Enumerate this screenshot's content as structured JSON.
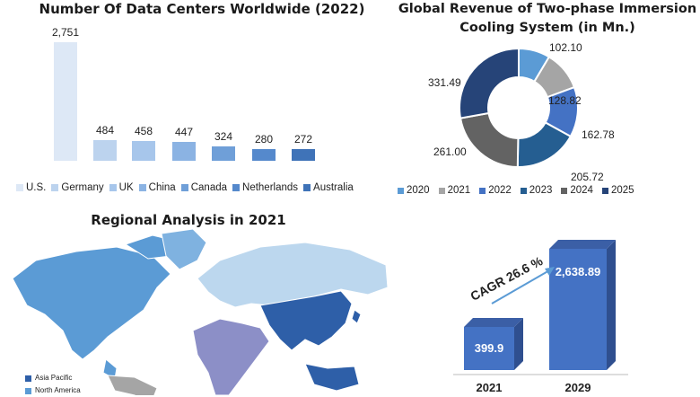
{
  "colors": {
    "c2020": "#5b9bd5",
    "c2021": "#a5a5a5",
    "c2022": "#4472c4",
    "c2023": "#255e91",
    "c2024": "#636363",
    "c2025": "#264478"
  },
  "chart_data": [
    {
      "type": "bar",
      "title": "Number Of Data Centers Worldwide (2022)",
      "categories": [
        "U.S.",
        "Germany",
        "UK",
        "China",
        "Canada",
        "Netherlands",
        "Australia"
      ],
      "values": [
        2751,
        484,
        458,
        447,
        324,
        280,
        272
      ],
      "labels": [
        "2,751",
        "484",
        "458",
        "447",
        "324",
        "280",
        "272"
      ],
      "colors": [
        "#dde8f6",
        "#bcd3ee",
        "#a7c6eb",
        "#8bb3e3",
        "#6f9fd8",
        "#5589cc",
        "#3f73b8"
      ]
    },
    {
      "type": "pie",
      "title": "Global Revenue of Two-phase Immersion Cooling System (in Mn.)",
      "categories": [
        "2020",
        "2021",
        "2022",
        "2023",
        "2024",
        "2025"
      ],
      "values": [
        102.1,
        128.82,
        162.78,
        205.72,
        261.0,
        331.49
      ],
      "labels": [
        "102.10",
        "128.82",
        "162.78",
        "205.72",
        "261.00",
        "331.49"
      ]
    },
    {
      "type": "bar",
      "title": "",
      "categories": [
        "2021",
        "2029"
      ],
      "values": [
        399.9,
        2638.89
      ],
      "labels": [
        "399.9",
        "2,638.89"
      ],
      "annotation": "CAGR 26.6 %"
    }
  ],
  "map": {
    "title": "Regional Analysis in 2021",
    "legend": [
      "Asia Pacific",
      "North America"
    ]
  }
}
